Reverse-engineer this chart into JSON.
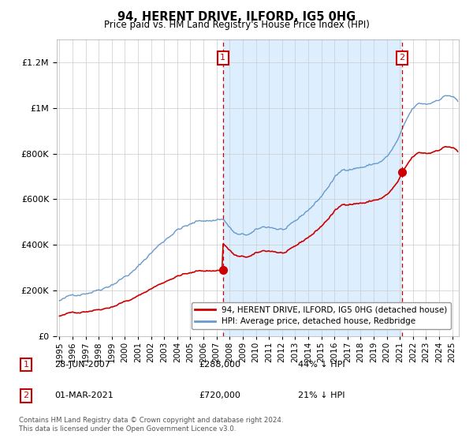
{
  "title": "94, HERENT DRIVE, ILFORD, IG5 0HG",
  "subtitle": "Price paid vs. HM Land Registry's House Price Index (HPI)",
  "legend_line1": "94, HERENT DRIVE, ILFORD, IG5 0HG (detached house)",
  "legend_line2": "HPI: Average price, detached house, Redbridge",
  "annotation1_label": "1",
  "annotation1_date": "28-JUN-2007",
  "annotation1_price": 288000,
  "annotation1_pct": "44% ↓ HPI",
  "annotation2_label": "2",
  "annotation2_date": "01-MAR-2021",
  "annotation2_price": 720000,
  "annotation2_pct": "21% ↓ HPI",
  "footnote": "Contains HM Land Registry data © Crown copyright and database right 2024.\nThis data is licensed under the Open Government Licence v3.0.",
  "sale_color": "#cc0000",
  "hpi_color": "#6699cc",
  "hpi_fill_color": "#ddeeff",
  "vline_color": "#cc0000",
  "annotation_box_color": "#cc0000",
  "ylim": [
    0,
    1300000
  ],
  "yticks": [
    0,
    200000,
    400000,
    600000,
    800000,
    1000000,
    1200000
  ],
  "sale1_x": 2007.49,
  "sale1_y": 288000,
  "sale2_x": 2021.17,
  "sale2_y": 720000,
  "xmin": 1994.8,
  "xmax": 2025.5
}
